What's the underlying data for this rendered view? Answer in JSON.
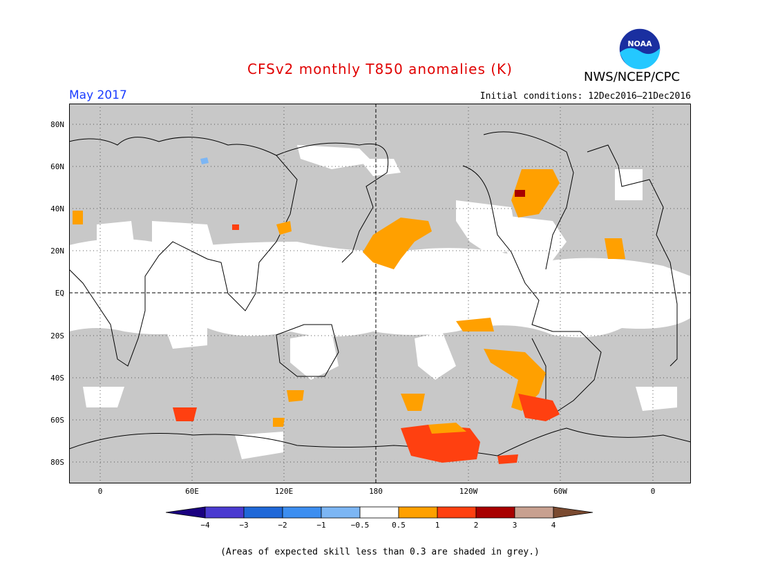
{
  "title": "CFSv2 monthly T850 anomalies (K)",
  "agency": "NWS/NCEP/CPC",
  "logo_text": "NOAA",
  "valid_month": "May 2017",
  "initial_conditions": "Initial conditions: 12Dec2016–21Dec2016",
  "latitude_labels": [
    "80N",
    "60N",
    "40N",
    "20N",
    "EQ",
    "20S",
    "40S",
    "60S",
    "80S"
  ],
  "longitude_labels": [
    "0",
    "60E",
    "120E",
    "180",
    "120W",
    "60W",
    "0"
  ],
  "colorbar": {
    "tick_labels": [
      "−4",
      "−3",
      "−2",
      "−1",
      "−0.5",
      "0.5",
      "1",
      "2",
      "3",
      "4"
    ],
    "colors": [
      "#1a0080",
      "#4a3ad0",
      "#1f68d8",
      "#3c8ef0",
      "#7cb6f4",
      "#ffffff",
      "#ffa000",
      "#ff4010",
      "#a80000",
      "#c8a090",
      "#7a4a30"
    ]
  },
  "note": "(Areas of expected skill less than 0.3 are shaded in grey.)",
  "colors": {
    "grey_skill": "#c8c8c8",
    "title": "#e00000",
    "month": "#1a3cff"
  }
}
